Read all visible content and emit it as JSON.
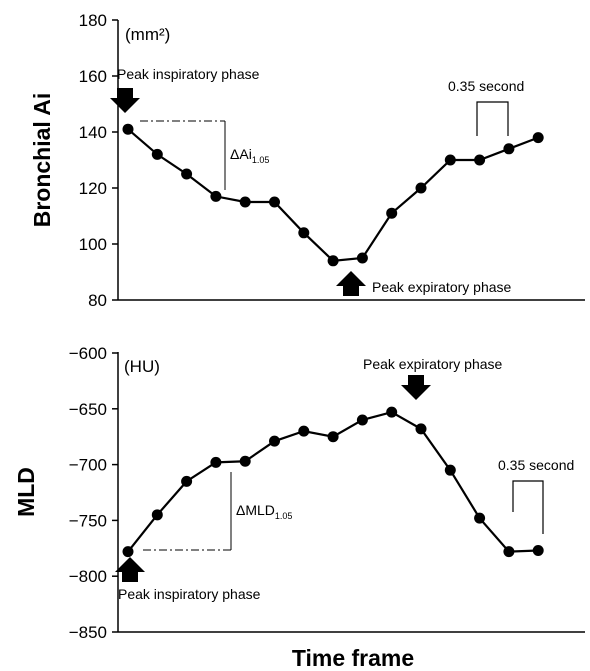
{
  "chart_data": [
    {
      "type": "line",
      "ylabel": "Bronchial Ai",
      "unit": "(mm²)",
      "ylim": [
        80,
        180
      ],
      "yticks": [
        80,
        100,
        120,
        140,
        160,
        180
      ],
      "series": [
        {
          "values": [
            141,
            132,
            125,
            117,
            115,
            115,
            104,
            94,
            95,
            111,
            120,
            130,
            130,
            134,
            138
          ]
        }
      ],
      "annotations": {
        "peak_insp": "Peak inspiratory phase",
        "peak_exp": "Peak expiratory phase",
        "delta": "ΔAi",
        "delta_sub": "1.05",
        "interval": "0.35 second"
      }
    },
    {
      "type": "line",
      "ylabel": "MLD",
      "unit": "(HU)",
      "ylim": [
        -850,
        -600
      ],
      "yticks": [
        -600,
        -650,
        -700,
        -750,
        -800,
        -850
      ],
      "series": [
        {
          "values": [
            -778,
            -745,
            -715,
            -698,
            -697,
            -679,
            -670,
            -675,
            -660,
            -653,
            -668,
            -705,
            -748,
            -778,
            -777
          ]
        }
      ],
      "annotations": {
        "peak_exp": "Peak expiratory phase",
        "peak_insp": "Peak inspiratory phase",
        "delta": "ΔMLD",
        "delta_sub": "1.05",
        "interval": "0.35 second"
      }
    }
  ],
  "xlabel": "Time frame"
}
